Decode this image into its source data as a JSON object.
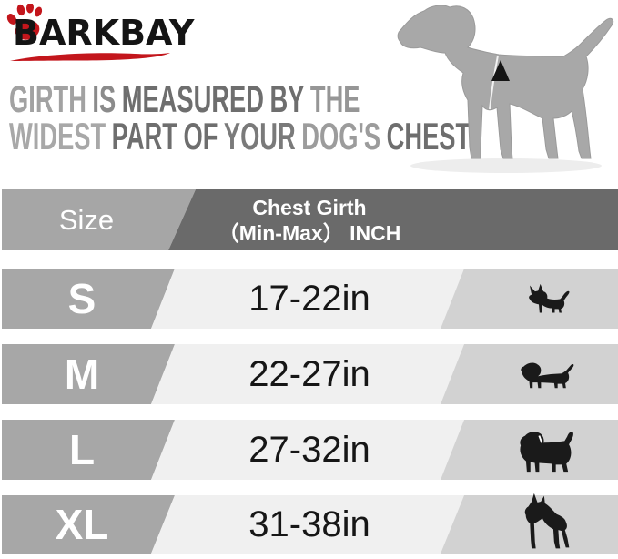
{
  "brand": {
    "name": "BARKBAY",
    "logo_red": "#c3161c"
  },
  "note": {
    "line1_words": [
      {
        "text": "GIRTH",
        "color": "#a2a2a2"
      },
      {
        "text": "IS",
        "color": "#8b8b8b"
      },
      {
        "text": "MEASURED",
        "color": "#6e6e6e"
      },
      {
        "text": "BY",
        "color": "#6e6e6e"
      },
      {
        "text": "THE",
        "color": "#969696"
      }
    ],
    "line2_words": [
      {
        "text": "WIDEST",
        "color": "#a8a8a8"
      },
      {
        "text": "PART",
        "color": "#6e6e6e"
      },
      {
        "text": "OF",
        "color": "#6e6e6e"
      },
      {
        "text": "YOUR",
        "color": "#7a7a7a"
      },
      {
        "text": "DOG'S",
        "color": "#9c9c9c"
      },
      {
        "text": "CHEST.",
        "color": "#6e6e6e"
      }
    ]
  },
  "diagram": {
    "dog_body_color": "#a8a8a8",
    "girth_marker_color": "#151515",
    "marker_shape": "triangle-up",
    "girth_line_color": "#f2f2f2"
  },
  "table": {
    "header": {
      "size_label": "Size",
      "girth_line1": "Chest Girth",
      "girth_line2": "（Min-Max） INCH",
      "left_bg": "#a6a6a6",
      "right_bg": "#6a6a6a",
      "text_color": "#ffffff"
    },
    "row_style": {
      "label_bg": "#a7a7a7",
      "value_bg": "#f0f0f0",
      "icon_bg": "#d2d2d2",
      "label_text": "#ffffff",
      "value_text": "#161616",
      "icon_color": "#1a1a1a"
    },
    "rows": [
      {
        "size": "S",
        "range": "17-22in",
        "icon": "chihuahua-icon"
      },
      {
        "size": "M",
        "range": "22-27in",
        "icon": "dachshund-icon"
      },
      {
        "size": "L",
        "range": "27-32in",
        "icon": "rottweiler-icon"
      },
      {
        "size": "XL",
        "range": "31-38in",
        "icon": "great-dane-icon"
      }
    ]
  },
  "chart_data": {
    "type": "table",
    "title": "Chest Girth (Min-Max) INCH",
    "columns": [
      "Size",
      "Chest Girth (Min-Max) INCH",
      "breed-icon"
    ],
    "rows": [
      [
        "S",
        "17-22in",
        "chihuahua"
      ],
      [
        "M",
        "22-27in",
        "dachshund"
      ],
      [
        "L",
        "27-32in",
        "rottweiler"
      ],
      [
        "XL",
        "31-38in",
        "great-dane"
      ]
    ]
  }
}
